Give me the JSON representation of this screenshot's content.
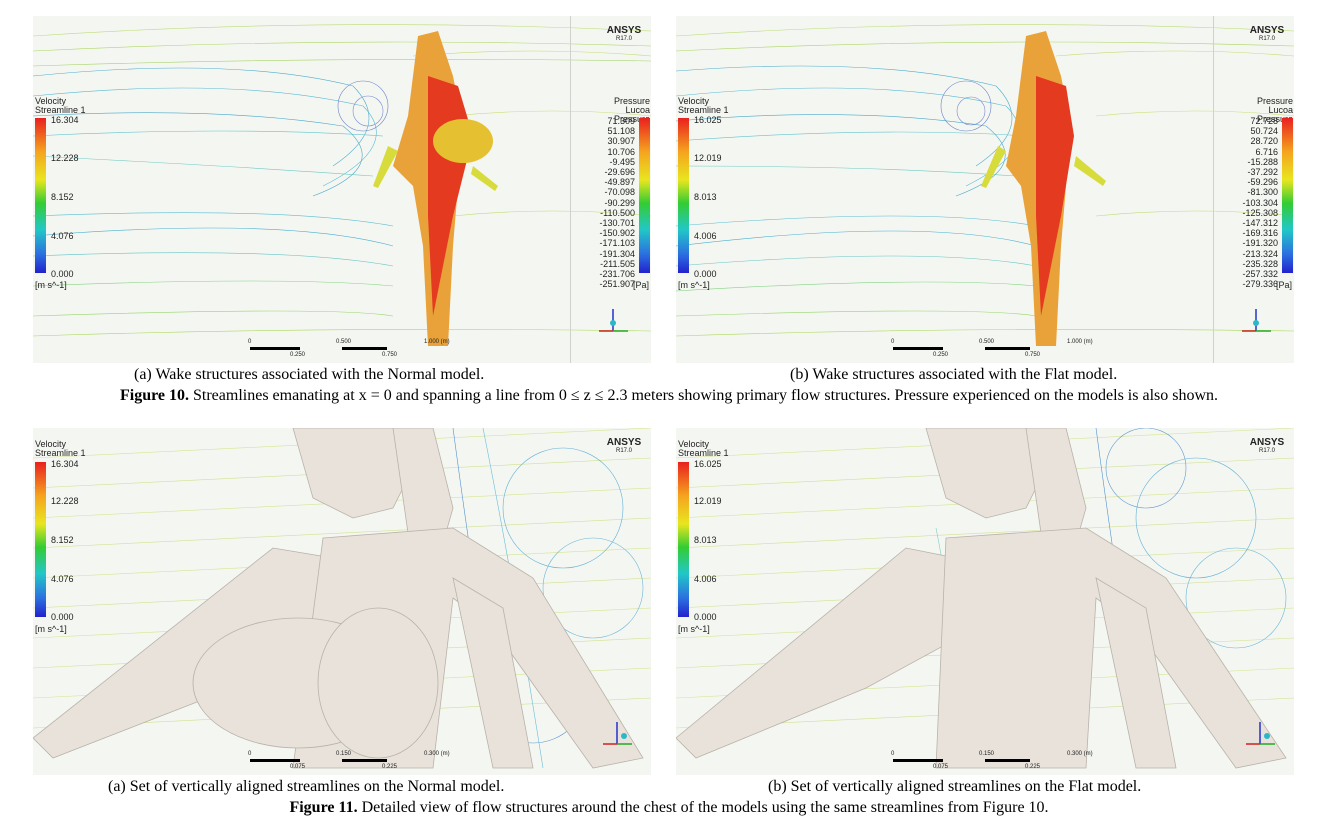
{
  "figure10": {
    "panel_a": {
      "ansys": "ANSYS",
      "ansys_version": "R17.0",
      "velocity_title": [
        "Velocity",
        "Streamline 1"
      ],
      "velocity_ticks": [
        "16.304",
        "12.228",
        "8.152",
        "4.076",
        "0.000"
      ],
      "velocity_unit": "[m s^-1]",
      "pressure_title": [
        "Pressure",
        "Lucoa Pressure"
      ],
      "pressure_ticks": [
        "71.309",
        "51.108",
        "30.907",
        "10.706",
        "-9.495",
        "-29.696",
        "-49.897",
        "-70.098",
        "-90.299",
        "-110.500",
        "-130.701",
        "-150.902",
        "-171.103",
        "-191.304",
        "-211.505",
        "-231.706",
        "-251.907"
      ],
      "pressure_unit": "[Pa]",
      "scale_ticks": [
        "0",
        "0.500",
        "1.000 (m)",
        "0.250",
        "0.750"
      ]
    },
    "panel_b": {
      "ansys": "ANSYS",
      "ansys_version": "R17.0",
      "velocity_title": [
        "Velocity",
        "Streamline 1"
      ],
      "velocity_ticks": [
        "16.025",
        "12.019",
        "8.013",
        "4.006",
        "0.000"
      ],
      "velocity_unit": "[m s^-1]",
      "pressure_title": [
        "Pressure",
        "Lucoa Pressure"
      ],
      "pressure_ticks": [
        "72.728",
        "50.724",
        "28.720",
        "6.716",
        "-15.288",
        "-37.292",
        "-59.296",
        "-81.300",
        "-103.304",
        "-125.308",
        "-147.312",
        "-169.316",
        "-191.320",
        "-213.324",
        "-235.328",
        "-257.332",
        "-279.336"
      ],
      "pressure_unit": "[Pa]",
      "scale_ticks": [
        "0",
        "0.500",
        "1.000 (m)",
        "0.250",
        "0.750"
      ]
    },
    "sublabel_a": "(a)  Wake structures associated with the Normal model.",
    "sublabel_b": "(b)  Wake structures associated with the Flat model.",
    "caption_bold": "Figure 10.",
    "caption_text": " Streamlines emanating at x = 0 and spanning a line from 0 ≤ z ≤ 2.3 meters showing primary flow structures. Pressure experienced on the models is also shown."
  },
  "figure11": {
    "panel_a": {
      "ansys": "ANSYS",
      "ansys_version": "R17.0",
      "velocity_title": [
        "Velocity",
        "Streamline 1"
      ],
      "velocity_ticks": [
        "16.304",
        "12.228",
        "8.152",
        "4.076",
        "0.000"
      ],
      "velocity_unit": "[m s^-1]",
      "scale_ticks": [
        "0",
        "0.150",
        "0.300 (m)",
        "0.075",
        "0.225"
      ]
    },
    "panel_b": {
      "ansys": "ANSYS",
      "ansys_version": "R17.0",
      "velocity_title": [
        "Velocity",
        "Streamline 1"
      ],
      "velocity_ticks": [
        "16.025",
        "12.019",
        "8.013",
        "4.006",
        "0.000"
      ],
      "velocity_unit": "[m s^-1]",
      "scale_ticks": [
        "0",
        "0.150",
        "0.300 (m)",
        "0.075",
        "0.225"
      ]
    },
    "sublabel_a": "(a)  Set of vertically aligned streamlines on the Normal model.",
    "sublabel_b": "(b)   Set of vertically aligned streamlines on the Flat model.",
    "caption_bold": "Figure 11.",
    "caption_text": " Detailed view of flow structures around the chest of the models using the same streamlines from Figure 10."
  },
  "colors": {
    "velocity_high": "#e8201f",
    "velocity_low": "#2222cc",
    "model_surface": "#e8e2da"
  }
}
